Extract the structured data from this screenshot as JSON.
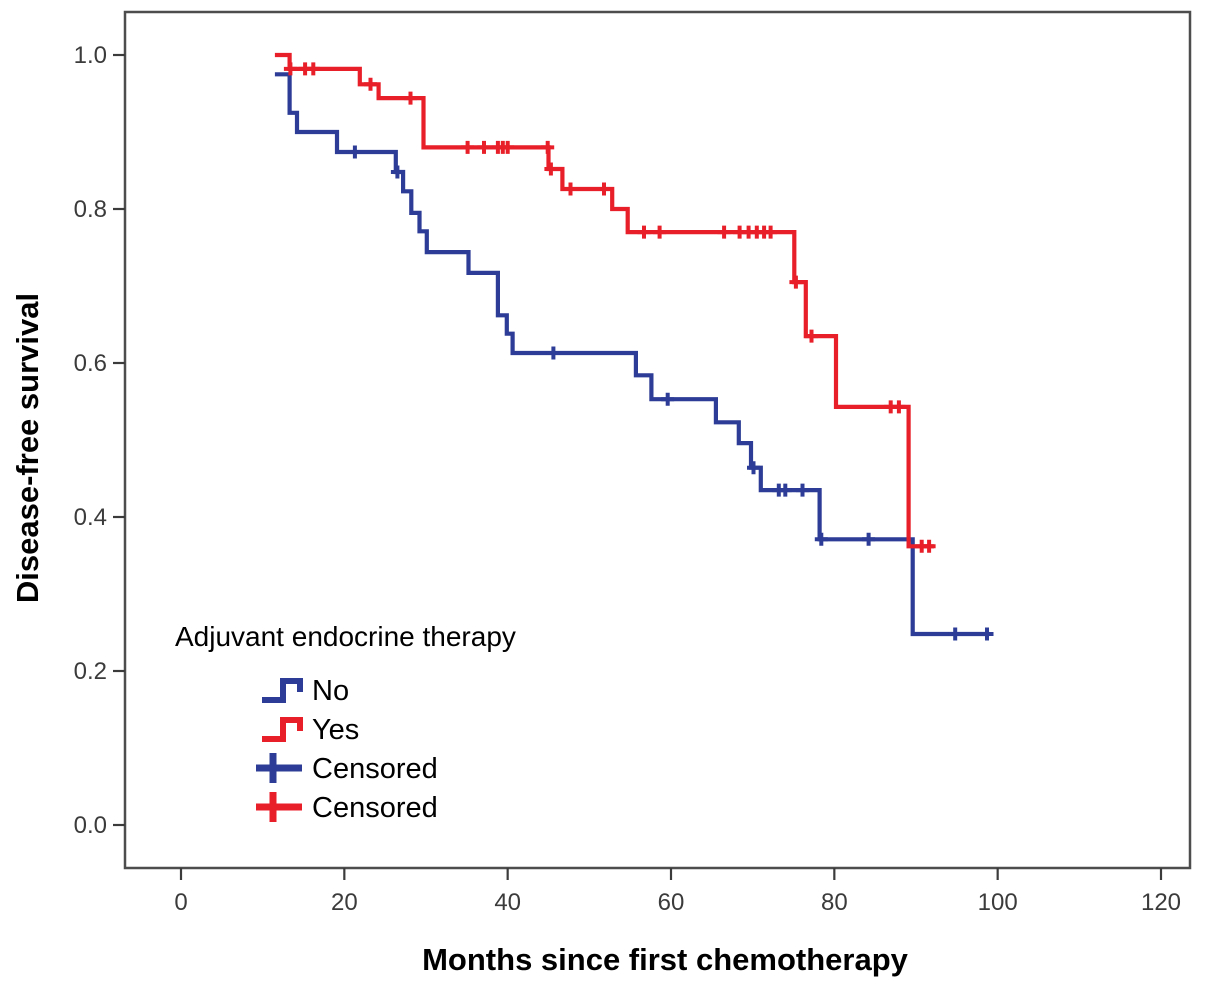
{
  "figure": {
    "background": "#ffffff",
    "y_axis_title": "Disease-free survival",
    "x_axis_title": "Months since first chemotherapy"
  },
  "axes": {
    "x_ticks": [
      {
        "value": 0,
        "label": "0"
      },
      {
        "value": 20,
        "label": "20"
      },
      {
        "value": 40,
        "label": "40"
      },
      {
        "value": 60,
        "label": "60"
      },
      {
        "value": 80,
        "label": "80"
      },
      {
        "value": 100,
        "label": "100"
      },
      {
        "value": 120,
        "label": "120"
      }
    ],
    "y_ticks": [
      {
        "value": 0.0,
        "label": "0.0"
      },
      {
        "value": 0.2,
        "label": "0.2"
      },
      {
        "value": 0.4,
        "label": "0.4"
      },
      {
        "value": 0.6,
        "label": "0.6"
      },
      {
        "value": 0.8,
        "label": "0.8"
      },
      {
        "value": 1.0,
        "label": "1.0"
      }
    ]
  },
  "legend": {
    "title": "Adjuvant endocrine therapy",
    "items": [
      {
        "label": "No",
        "marker": "step",
        "color": "#2d3c96"
      },
      {
        "label": "Yes",
        "marker": "step",
        "color": "#e81e28"
      },
      {
        "label": "Censored",
        "marker": "plus",
        "color": "#2d3c96"
      },
      {
        "label": "Censored",
        "marker": "plus",
        "color": "#e81e28"
      }
    ]
  },
  "chart_data": {
    "type": "line",
    "subtype": "kaplan_meier_step",
    "title": "",
    "xlabel": "Months since first chemotherapy",
    "ylabel": "Disease-free survival",
    "xlim": [
      -7,
      124
    ],
    "ylim": [
      -0.056,
      1.056
    ],
    "x_tick_values": [
      0,
      20,
      40,
      60,
      80,
      100,
      120
    ],
    "y_tick_values": [
      0.0,
      0.2,
      0.4,
      0.6,
      0.8,
      1.0
    ],
    "grid": false,
    "legend_position": "inside-lower-left",
    "series": [
      {
        "name": "No",
        "group": "No adjuvant endocrine therapy",
        "color": "#2d3c96",
        "points": [
          [
            11.5,
            0.975
          ],
          [
            13.3,
            0.925
          ],
          [
            14.2,
            0.9
          ],
          [
            19.1,
            0.874
          ],
          [
            26.3,
            0.848
          ],
          [
            27.2,
            0.823
          ],
          [
            28.2,
            0.795
          ],
          [
            29.2,
            0.771
          ],
          [
            30.1,
            0.744
          ],
          [
            35.2,
            0.717
          ],
          [
            38.8,
            0.662
          ],
          [
            39.9,
            0.638
          ],
          [
            40.6,
            0.613
          ],
          [
            55.7,
            0.584
          ],
          [
            57.6,
            0.553
          ],
          [
            65.5,
            0.523
          ],
          [
            68.3,
            0.496
          ],
          [
            69.8,
            0.464
          ],
          [
            71.0,
            0.435
          ],
          [
            78.2,
            0.371
          ],
          [
            89.6,
            0.248
          ]
        ],
        "end_time": 99.0,
        "censor_times": [
          21.3,
          26.5,
          45.6,
          59.6,
          70.1,
          73.2,
          74.0,
          76.1,
          78.4,
          84.2,
          94.8,
          98.7
        ]
      },
      {
        "name": "Yes",
        "group": "Adjuvant endocrine therapy given",
        "color": "#e81e28",
        "points": [
          [
            11.5,
            1.0
          ],
          [
            13.3,
            0.982
          ],
          [
            21.9,
            0.962
          ],
          [
            24.2,
            0.944
          ],
          [
            29.7,
            0.88
          ],
          [
            45.0,
            0.852
          ],
          [
            46.7,
            0.826
          ],
          [
            52.8,
            0.8
          ],
          [
            54.7,
            0.77
          ],
          [
            75.1,
            0.705
          ],
          [
            76.5,
            0.635
          ],
          [
            80.2,
            0.543
          ],
          [
            89.1,
            0.362
          ]
        ],
        "end_time": 92.2,
        "censor_times": [
          13.4,
          15.2,
          16.2,
          23.2,
          28.1,
          35.1,
          37.1,
          38.8,
          39.4,
          40.0,
          44.9,
          45.3,
          47.7,
          51.8,
          56.7,
          58.6,
          66.5,
          68.4,
          69.5,
          70.5,
          71.4,
          72.2,
          75.3,
          77.2,
          86.9,
          87.9,
          90.7,
          91.6
        ]
      }
    ]
  },
  "colors": {
    "no_group": "#2d3c96",
    "yes_group": "#e81e28",
    "axis_border": "#4d4d4d",
    "tick_mark": "#3b3b3b",
    "tick_text": "#3b3b3b",
    "title_text": "#000000"
  }
}
